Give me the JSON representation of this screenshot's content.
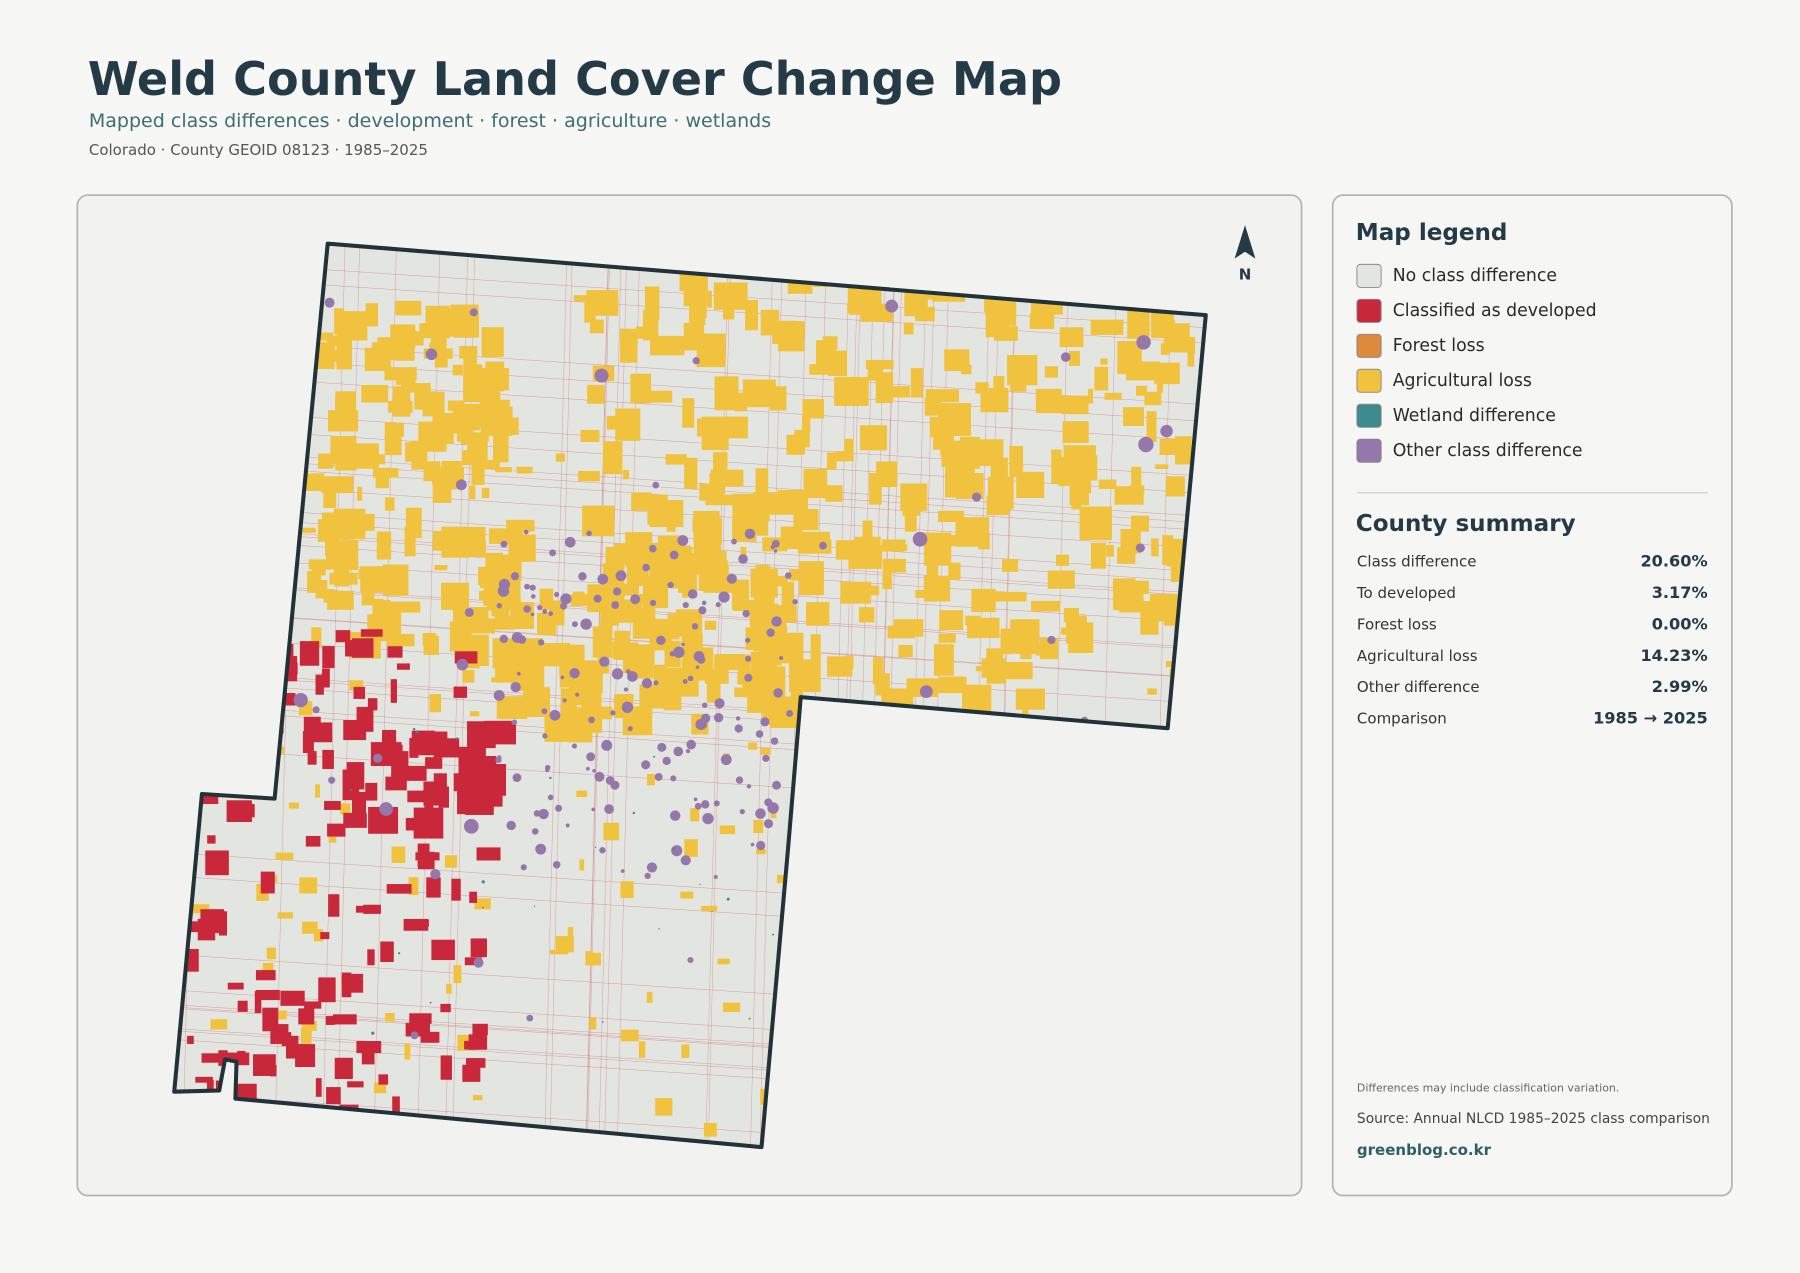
{
  "header": {
    "title": "Weld County Land Cover Change Map",
    "subtitle": "Mapped class differences · development · forest · agriculture · wetlands",
    "meta": "Colorado · County GEOID 08123 · 1985–2025"
  },
  "map": {
    "north_label": "N"
  },
  "legend": {
    "title": "Map legend",
    "items": [
      {
        "label": "No class difference",
        "color": "#e3e5e0"
      },
      {
        "label": "Classified as developed",
        "color": "#c9283a"
      },
      {
        "label": "Forest loss",
        "color": "#dd8a3c"
      },
      {
        "label": "Agricultural loss",
        "color": "#f0c23e"
      },
      {
        "label": "Wetland difference",
        "color": "#3d8a8f"
      },
      {
        "label": "Other class difference",
        "color": "#9577ab"
      }
    ]
  },
  "summary": {
    "title": "County summary",
    "rows": [
      {
        "label": "Class difference",
        "value": "20.60%"
      },
      {
        "label": "To developed",
        "value": "3.17%"
      },
      {
        "label": "Forest loss",
        "value": "0.00%"
      },
      {
        "label": "Agricultural loss",
        "value": "14.23%"
      },
      {
        "label": "Other difference",
        "value": "2.99%"
      },
      {
        "label": "Comparison",
        "value": "1985 → 2025"
      }
    ]
  },
  "notes": {
    "caveat": "Differences may include classification variation.",
    "source": "Source: Annual NLCD 1985–2025 class comparison",
    "site": "greenblog.co.kr"
  }
}
